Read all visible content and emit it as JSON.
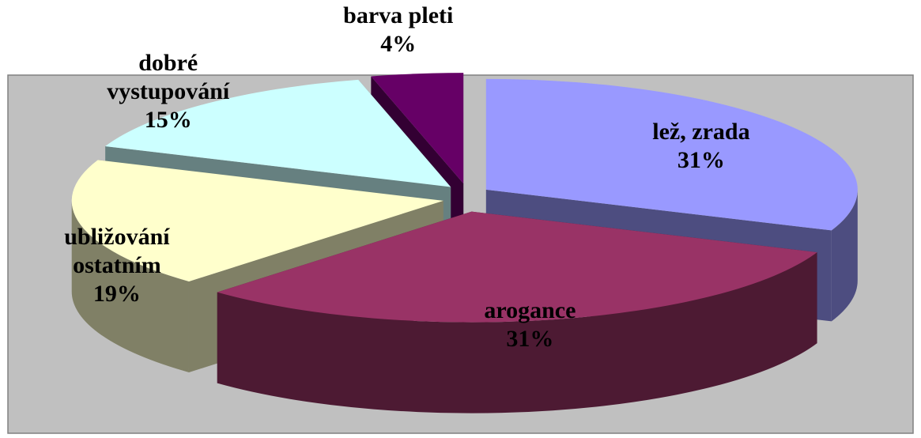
{
  "chart_data": {
    "type": "pie3d",
    "categories": [
      "lež, zrada",
      "arogance",
      "ubližování ostatním",
      "dobré vystupování",
      "barva pleti"
    ],
    "values": [
      31,
      31,
      19,
      15,
      4
    ],
    "value_labels": [
      "31%",
      "31%",
      "19%",
      "15%",
      "4%"
    ],
    "colors": [
      "#9999ff",
      "#993366",
      "#ffffcc",
      "#ccffff",
      "#660066"
    ]
  }
}
